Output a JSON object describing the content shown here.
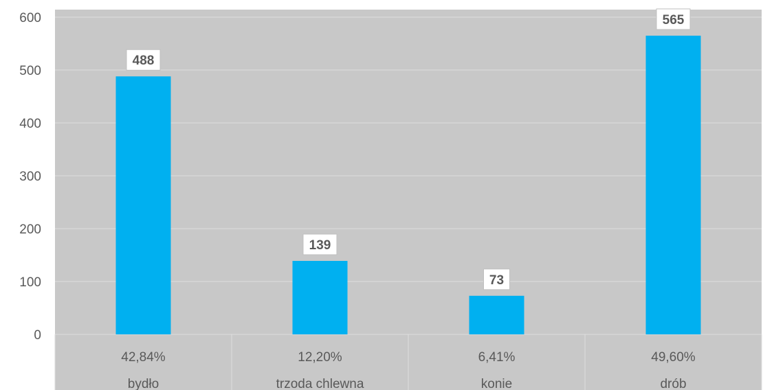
{
  "chart_data": {
    "type": "bar",
    "categories": [
      "bydło",
      "trzoda chlewna",
      "konie",
      "drób"
    ],
    "percent_labels": [
      "42,84%",
      "12,20%",
      "6,41%",
      "49,60%"
    ],
    "values": [
      488,
      139,
      73,
      565
    ],
    "data_labels": [
      "488",
      "139",
      "73",
      "565"
    ],
    "ylim": [
      0,
      600
    ],
    "yticks": [
      0,
      100,
      200,
      300,
      400,
      500,
      600
    ],
    "ytick_labels": [
      "0",
      "100",
      "200",
      "300",
      "400",
      "500",
      "600"
    ],
    "title": "",
    "xlabel": "",
    "ylabel": "",
    "grid": true,
    "legend": "none",
    "colors": {
      "bar": "#00B0F0",
      "plot_background": "#C8C8C8",
      "gridline": "#DEDEDE",
      "text": "#595959",
      "label_box_fill": "#FFFFFF",
      "label_box_border": "#BFBFBF"
    }
  }
}
